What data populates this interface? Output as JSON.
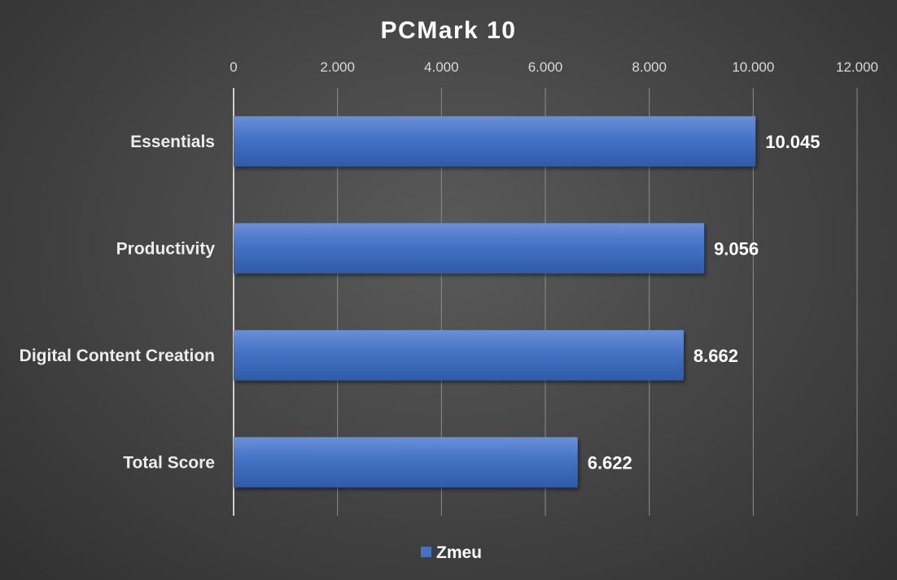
{
  "chart_data": {
    "type": "bar",
    "orientation": "horizontal",
    "title": "PCMark 10",
    "categories": [
      "Essentials",
      "Productivity",
      "Digital Content Creation",
      "Total Score"
    ],
    "series": [
      {
        "name": "Zmeu",
        "values": [
          10045,
          9056,
          8662,
          6622
        ],
        "data_labels": [
          "10.045",
          "9.056",
          "8.662",
          "6.622"
        ],
        "color": "#4472c4"
      }
    ],
    "xlim": [
      0,
      12000
    ],
    "x_ticks": [
      0,
      2000,
      4000,
      6000,
      8000,
      10000,
      12000
    ],
    "x_tick_labels": [
      "0",
      "2.000",
      "4.000",
      "6.000",
      "8.000",
      "10.000",
      "12.000"
    ],
    "x_axis_position": "top",
    "grid": true,
    "legend": "bottom-center",
    "background": "#474747"
  }
}
